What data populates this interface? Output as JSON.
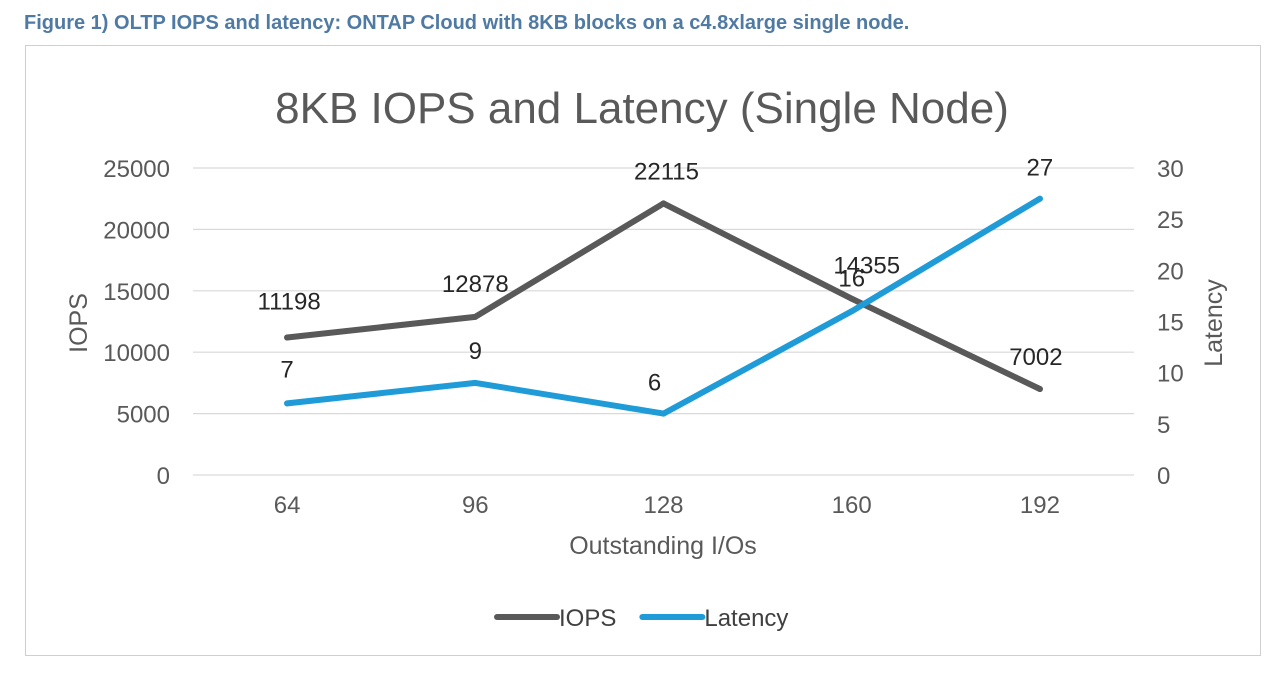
{
  "figure_caption": "Figure 1) OLTP IOPS and latency: ONTAP Cloud with 8KB blocks on a c4.8xlarge single node.",
  "chart_data": {
    "type": "line",
    "title": "8KB IOPS and Latency (Single Node)",
    "xlabel": "Outstanding I/Os",
    "ylabel": "IOPS",
    "y2label": "Latency",
    "categories": [
      "64",
      "96",
      "128",
      "160",
      "192"
    ],
    "ylim": [
      0,
      25000
    ],
    "y_ticks": [
      "0",
      "5000",
      "10000",
      "15000",
      "20000",
      "25000"
    ],
    "y2lim": [
      0,
      30
    ],
    "y2_ticks": [
      "0",
      "5",
      "10",
      "15",
      "20",
      "25",
      "30"
    ],
    "grid": true,
    "legend_position": "bottom",
    "series": [
      {
        "name": "IOPS",
        "axis": "left",
        "color": "#595959",
        "values": [
          11198,
          12878,
          22115,
          14355,
          7002
        ],
        "labels": [
          "11198",
          "12878",
          "22115",
          "14355",
          "7002"
        ]
      },
      {
        "name": "Latency",
        "axis": "right",
        "color": "#1f9bd7",
        "values": [
          7,
          9,
          6,
          16,
          27
        ],
        "labels": [
          "7",
          "9",
          "6",
          "16",
          "27"
        ]
      }
    ]
  }
}
